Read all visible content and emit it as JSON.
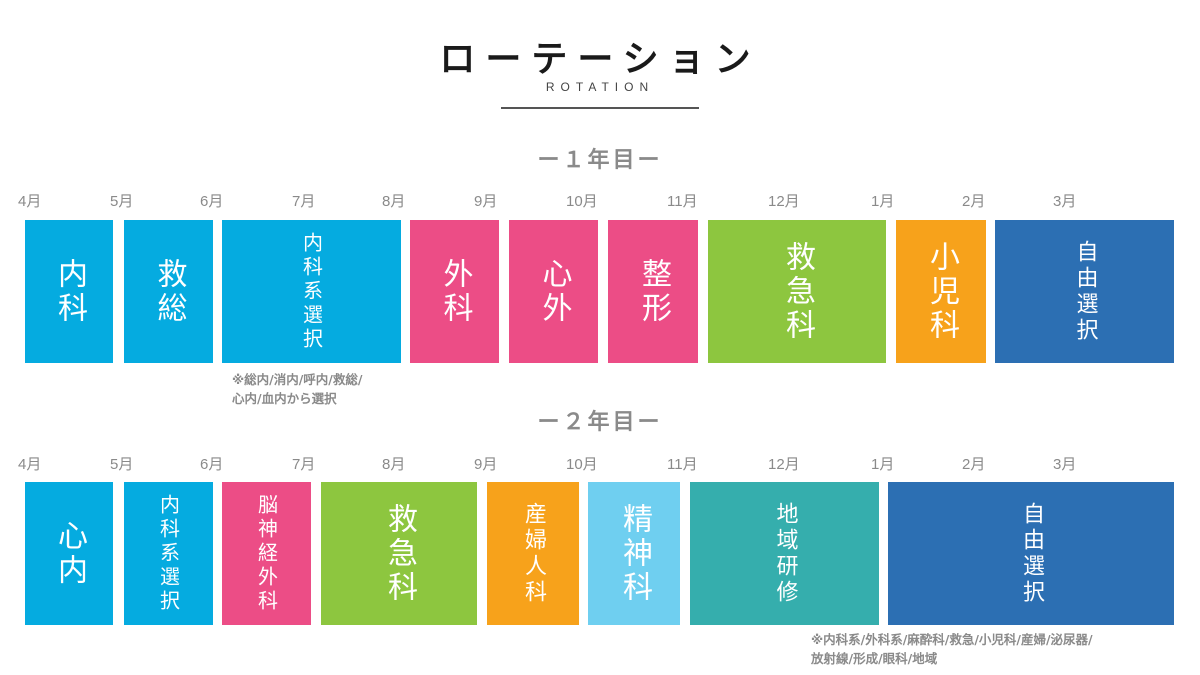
{
  "title": "ローテーション",
  "subtitle": "ROTATION",
  "colors": {
    "cyan": "#05ABE0",
    "pink": "#EC4D86",
    "green": "#8DC63F",
    "orange": "#F7A21B",
    "navy": "#2C6FB3",
    "teal": "#35AEAD",
    "lightblue": "#6FCFF0"
  },
  "year1": {
    "label": "ー１年目ー",
    "months": [
      "4月",
      "5月",
      "6月",
      "7月",
      "8月",
      "9月",
      "10月",
      "11月",
      "12月",
      "1月",
      "2月",
      "3月"
    ],
    "blocks": [
      {
        "label": "内科",
        "color": "cyan"
      },
      {
        "label": "救総",
        "color": "cyan"
      },
      {
        "label": "内科系選択",
        "color": "cyan"
      },
      {
        "label": "外科",
        "color": "pink"
      },
      {
        "label": "心外",
        "color": "pink"
      },
      {
        "label": "整形",
        "color": "pink"
      },
      {
        "label": "救急科",
        "color": "green"
      },
      {
        "label": "小児科",
        "color": "orange"
      },
      {
        "label": "自由選択",
        "color": "navy"
      }
    ],
    "note_line1": "※総内/消内/呼内/救総/",
    "note_line2": "心内/血内から選択"
  },
  "year2": {
    "label": "ー２年目ー",
    "months": [
      "4月",
      "5月",
      "6月",
      "7月",
      "8月",
      "9月",
      "10月",
      "11月",
      "12月",
      "1月",
      "2月",
      "3月"
    ],
    "blocks": [
      {
        "label": "心内",
        "color": "cyan"
      },
      {
        "label": "内科系選択",
        "color": "cyan"
      },
      {
        "label": "脳神経外科",
        "color": "pink"
      },
      {
        "label": "救急科",
        "color": "green"
      },
      {
        "label": "産婦人科",
        "color": "orange"
      },
      {
        "label": "精神科",
        "color": "lightblue"
      },
      {
        "label": "地域研修",
        "color": "teal"
      },
      {
        "label": "自由選択",
        "color": "navy"
      }
    ],
    "note_line1": "※内科系/外科系/麻酔科/救急/小児科/産婦/泌尿器/",
    "note_line2": "放射線/形成/眼科/地域"
  }
}
